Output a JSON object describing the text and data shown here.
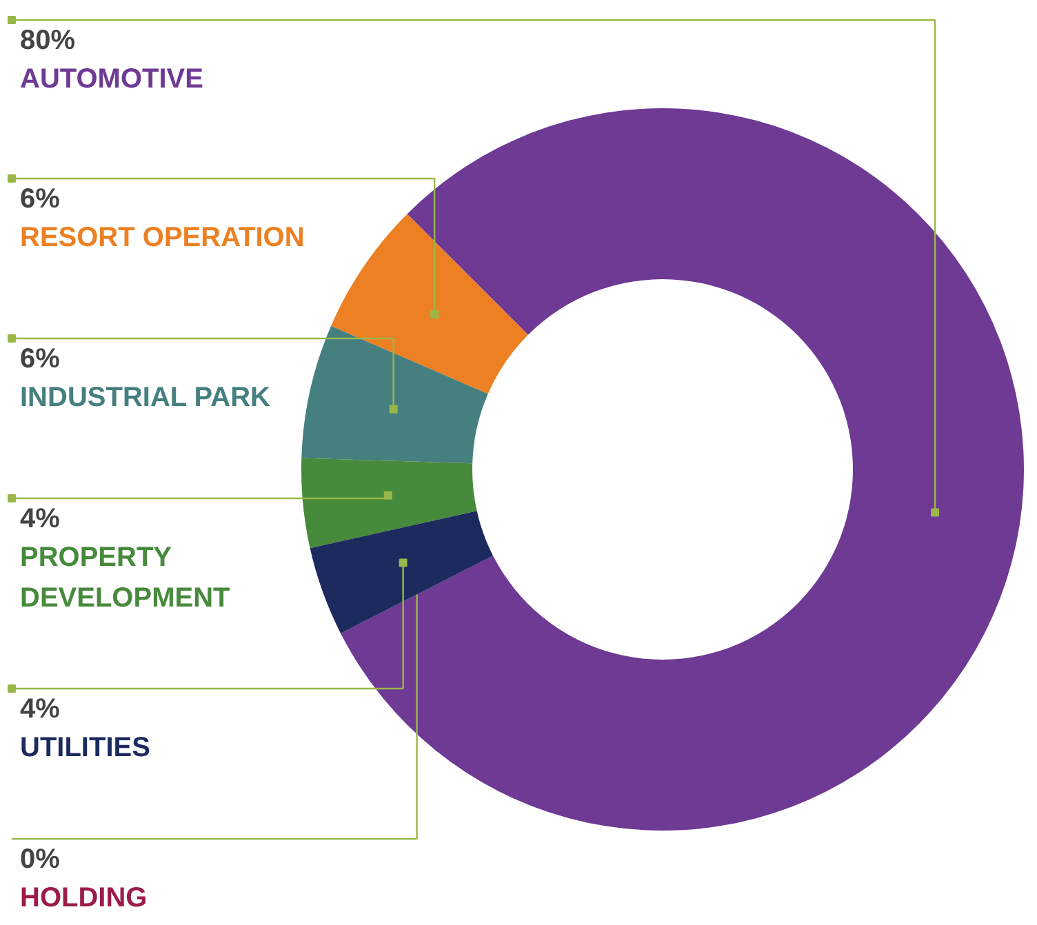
{
  "chart_data": {
    "type": "donut",
    "categories": [
      "AUTOMOTIVE",
      "RESORT OPERATION",
      "INDUSTRIAL PARK",
      "PROPERTY DEVELOPMENT",
      "UTILITIES",
      "HOLDING"
    ],
    "values": [
      80,
      6,
      6,
      4,
      4,
      0
    ],
    "value_labels": [
      "80%",
      "6%",
      "6%",
      "4%",
      "4%",
      "0%"
    ],
    "colors": [
      "#6e3a94",
      "#ec8023",
      "#467f7f",
      "#478a3c",
      "#1d2a5e",
      "#9b1b4a"
    ]
  }
}
